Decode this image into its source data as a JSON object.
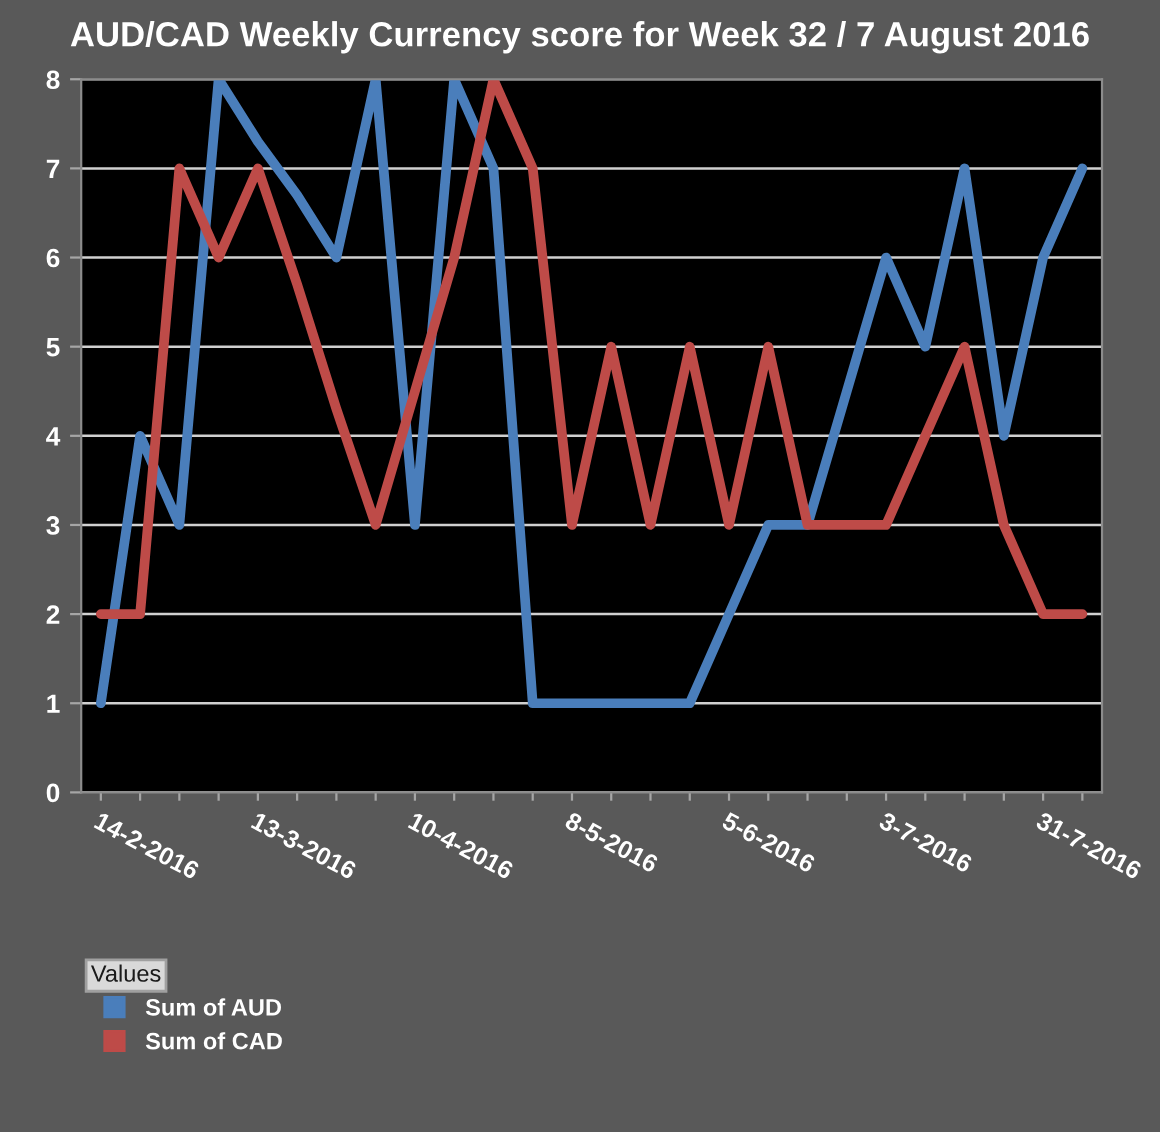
{
  "chart_data": {
    "type": "line",
    "title": "AUD/CAD Weekly Currency score for Week 32 / 7 August 2016",
    "categories": [
      "14-2-2016",
      null,
      null,
      null,
      "13-3-2016",
      null,
      null,
      null,
      "10-4-2016",
      null,
      null,
      null,
      "8-5-2016",
      null,
      null,
      null,
      "5-6-2016",
      null,
      null,
      null,
      "3-7-2016",
      null,
      null,
      null,
      "31-7-2016",
      null
    ],
    "series": [
      {
        "name": "Sum of AUD",
        "color": "#4a7ebb",
        "values": [
          1,
          4,
          3,
          8,
          7.3,
          6.7,
          6,
          8,
          3,
          8,
          7,
          1,
          1,
          1,
          1,
          1,
          2,
          3,
          3,
          4.5,
          6,
          5,
          7,
          4,
          6,
          7
        ]
      },
      {
        "name": "Sum of CAD",
        "color": "#be4b48",
        "values": [
          2,
          2,
          7,
          6,
          7,
          5.7,
          4.3,
          3,
          4.5,
          6,
          8,
          7,
          3,
          5,
          3,
          5,
          3,
          5,
          3,
          3,
          3,
          4,
          5,
          3,
          2,
          2
        ]
      }
    ],
    "ylim": [
      0,
      8
    ],
    "yticks": [
      0,
      1,
      2,
      3,
      4,
      5,
      6,
      7,
      8
    ],
    "grid": "y",
    "legend": "bottom left",
    "legend_title": "Values"
  }
}
